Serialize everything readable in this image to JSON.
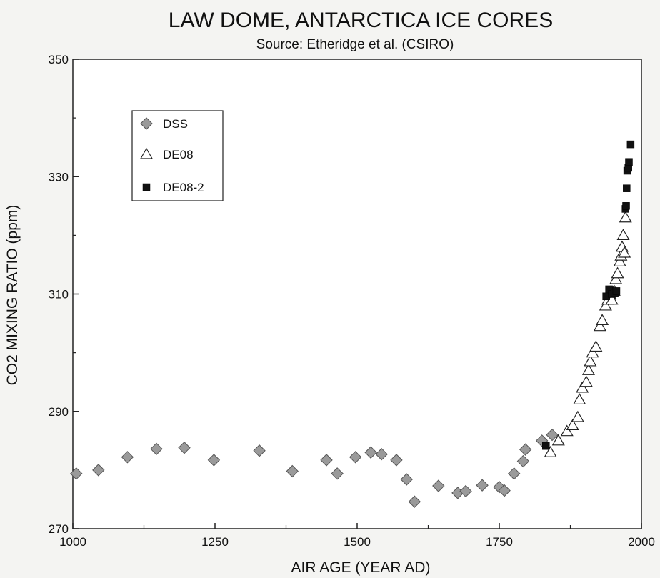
{
  "chart_data": {
    "type": "scatter",
    "title": "LAW DOME, ANTARCTICA ICE CORES",
    "subtitle": "Source: Etheridge et al. (CSIRO)",
    "xlabel": "AIR AGE (YEAR AD)",
    "ylabel": "CO2 MIXING RATIO (ppm)",
    "xlim": [
      1000,
      2000
    ],
    "ylim": [
      270,
      350
    ],
    "xticks": [
      1000,
      1250,
      1500,
      1750,
      2000
    ],
    "yticks": [
      270,
      290,
      310,
      330,
      350
    ],
    "grid": false,
    "legend_position": "top-left",
    "series": [
      {
        "name": "DSS",
        "marker": "diamond",
        "color": "#9a9a9a",
        "x": [
          1006,
          1045,
          1096,
          1147,
          1196,
          1248,
          1328,
          1386,
          1446,
          1465,
          1497,
          1524,
          1543,
          1569,
          1587,
          1601,
          1643,
          1677,
          1691,
          1720,
          1750,
          1759,
          1776,
          1792,
          1796,
          1825,
          1843
        ],
        "y": [
          279.4,
          280.0,
          282.2,
          283.6,
          283.8,
          281.7,
          283.3,
          279.8,
          281.7,
          279.4,
          282.2,
          283.0,
          282.7,
          281.7,
          278.4,
          274.6,
          277.3,
          276.1,
          276.4,
          277.4,
          277.1,
          276.5,
          279.4,
          281.5,
          283.5,
          285.0,
          286.0
        ]
      },
      {
        "name": "DE08",
        "marker": "triangle-open",
        "color": "#ffffff",
        "x": [
          1840,
          1854,
          1869,
          1879,
          1888,
          1891,
          1896,
          1903,
          1907,
          1910,
          1914,
          1920,
          1927,
          1931,
          1937,
          1941,
          1944,
          1948,
          1952,
          1955,
          1958,
          1962,
          1964,
          1966,
          1968,
          1970,
          1972
        ],
        "y": [
          283.0,
          285.0,
          286.6,
          287.6,
          289.0,
          292.0,
          294.0,
          295.0,
          297.0,
          298.5,
          300.0,
          301.0,
          304.5,
          305.5,
          308.0,
          309.0,
          310.0,
          309.0,
          310.5,
          312.5,
          313.5,
          315.5,
          316.5,
          318.0,
          320.0,
          317.0,
          323.0
        ]
      },
      {
        "name": "DE08-2",
        "marker": "square-filled",
        "color": "#111111",
        "x": [
          1832,
          1938,
          1943,
          1948,
          1953,
          1956,
          1972,
          1973,
          1974,
          1975,
          1977,
          1978,
          1981
        ],
        "y": [
          284.1,
          309.6,
          310.8,
          310.0,
          310.2,
          310.5,
          324.5,
          325.0,
          328.0,
          331.0,
          331.5,
          332.5,
          335.5
        ]
      }
    ]
  }
}
